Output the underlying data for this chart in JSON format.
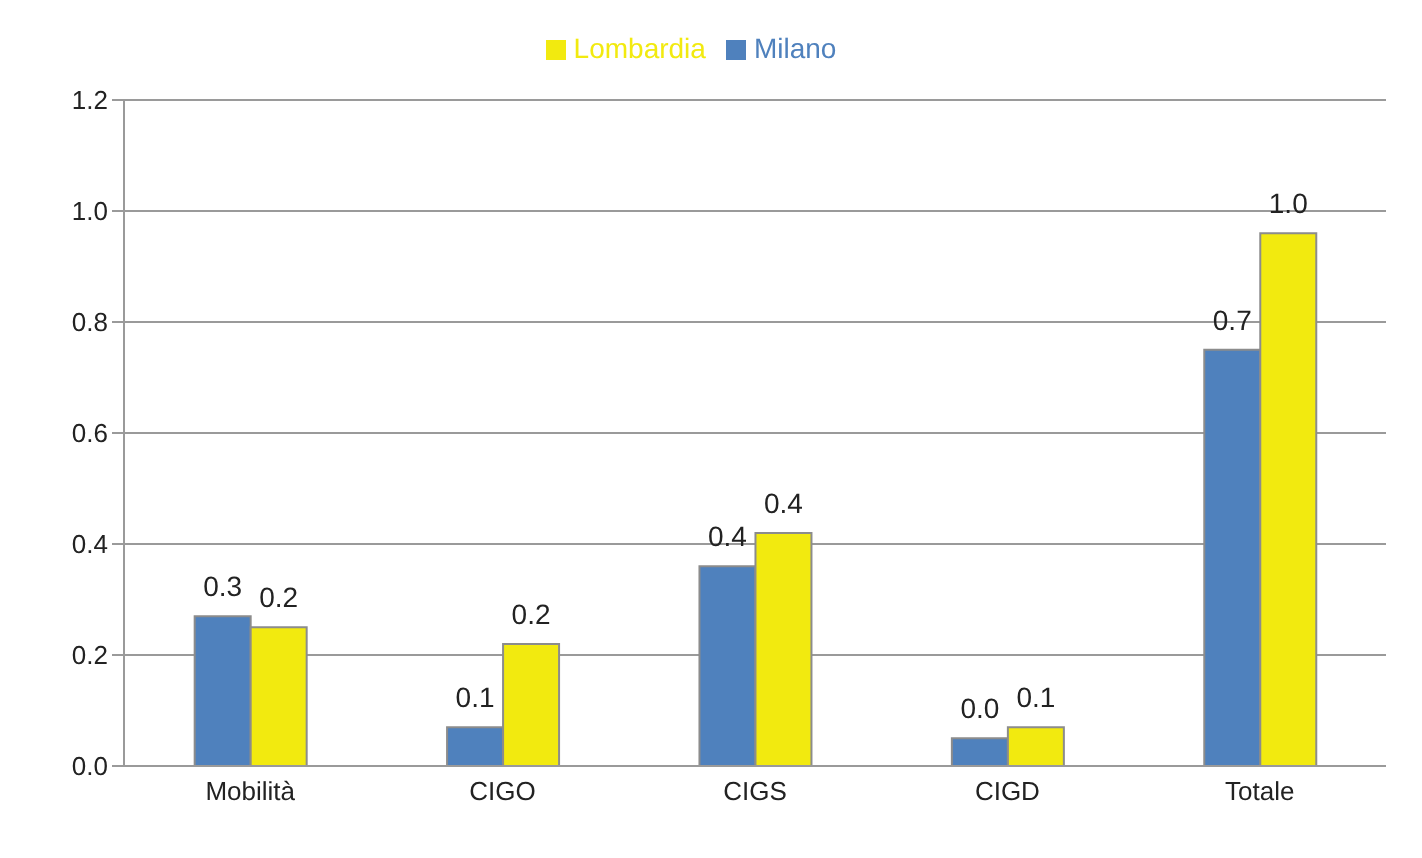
{
  "chart_data": {
    "type": "bar",
    "categories": [
      "Mobilità",
      "CIGO",
      "CIGS",
      "CIGD",
      "Totale"
    ],
    "series": [
      {
        "name": "Milano",
        "color": "#4f81bd",
        "values": [
          0.27,
          0.07,
          0.36,
          0.05,
          0.75
        ],
        "value_labels": [
          "0.3",
          "0.1",
          "0.4",
          "0.0",
          "0.7"
        ]
      },
      {
        "name": "Lombardia",
        "color": "#f2ea0f",
        "values": [
          0.25,
          0.22,
          0.42,
          0.07,
          0.96
        ],
        "value_labels": [
          "0.2",
          "0.2",
          "0.4",
          "0.1",
          "1.0"
        ]
      }
    ],
    "ylim": [
      0,
      1.2
    ],
    "yticks": [
      {
        "value": 0,
        "label": "0.0"
      },
      0.2,
      0.4,
      0.6,
      0.8,
      {
        "value": 1,
        "label": "1.0"
      },
      1.2
    ],
    "grid": "y",
    "legend": "top"
  }
}
